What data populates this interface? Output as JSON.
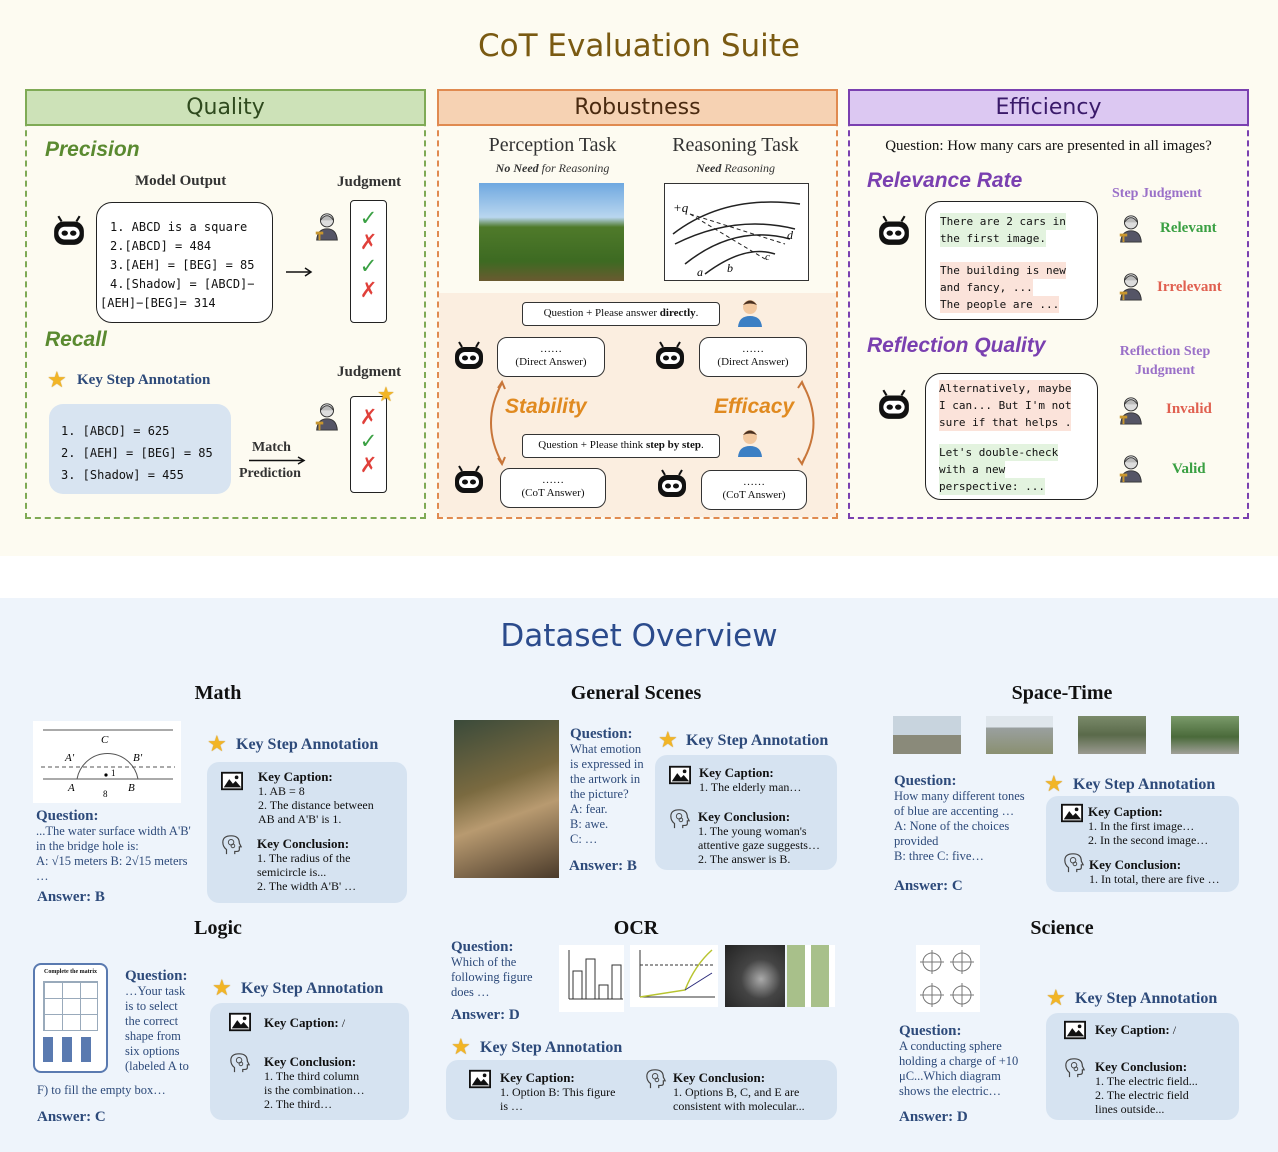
{
  "suite": {
    "title": "CoT Evaluation Suite",
    "quality": {
      "header": "Quality",
      "precision": "Precision",
      "model_output": "Model Output",
      "judgment": "Judgment",
      "output_lines": [
        "1. ABCD is a square",
        "2.[ABCD] = 484",
        "3.[AEH] = [BEG] = 85",
        "4.[Shadow] = [ABCD]−",
        "[AEH]−[BEG]= 314"
      ],
      "marks": [
        "✓",
        "✗",
        "✓",
        "✗"
      ],
      "recall": "Recall",
      "key_step": "Key Step Annotation",
      "judgment2": "Judgment",
      "recall_lines": [
        "1.  [ABCD] = 625",
        "2.  [AEH] = [BEG] = 85",
        "3.  [Shadow] = 455"
      ],
      "match": "Match",
      "prediction": "Prediction",
      "marks2": [
        "✗",
        "✓",
        "✗"
      ]
    },
    "robustness": {
      "header": "Robustness",
      "perception_task": "Perception Task",
      "perception_sub_bold": "No Need",
      "perception_sub_rest": " for Reasoning",
      "reasoning_task": "Reasoning Task",
      "reasoning_sub_bold": "Need",
      "reasoning_sub_rest": " Reasoning",
      "q_direct_pre": "Question + Please answer ",
      "q_direct_bold": "directly",
      "q_cot_pre": "Question + Please think ",
      "q_cot_bold": "step by step",
      "dots": "……",
      "direct_answer": "(Direct Answer)",
      "cot_answer": "(CoT Answer)",
      "stability": "Stability",
      "efficacy": "Efficacy"
    },
    "efficiency": {
      "header": "Efficiency",
      "question": "Question: How many cars are presented in all images?",
      "relevance_rate": "Relevance Rate",
      "step_judgment": "Step Judgment",
      "bubble1_a": [
        "There are 2 cars in",
        "the first image."
      ],
      "bubble1_b": [
        "The building is new",
        "and fancy, ...",
        "The people are ..."
      ],
      "relevant": "Relevant",
      "irrelevant": "Irrelevant",
      "reflection_quality": "Reflection Quality",
      "reflection_step_judgment": [
        "Reflection Step",
        "Judgment"
      ],
      "bubble2_a": [
        "Alternatively, maybe",
        "I can... But I'm not",
        "sure if that helps ."
      ],
      "bubble2_b": [
        "Let's double-check",
        "with a new",
        "perspective: ..."
      ],
      "invalid": "Invalid",
      "valid": "Valid"
    },
    "colors": {
      "quality": "#7faa55",
      "robustness": "#e08a50",
      "efficiency": "#7a40b0",
      "relevant": "#3aa043",
      "irrelevant": "#e06050"
    }
  },
  "dataset": {
    "title": "Dataset Overview",
    "ksa": "Key Step Annotation",
    "key_caption": "Key Caption:",
    "key_conclusion": "Key Conclusion:",
    "question_label": "Question:",
    "math": {
      "title": "Math",
      "question": [
        "...The water surface width A'B'",
        "in the bridge hole is:",
        "A: √15 meters   B: 2√15 meters",
        "…"
      ],
      "answer": "Answer: B",
      "caption": [
        "1. AB = 8",
        "2. The distance between",
        "AB and A'B' is 1."
      ],
      "conclusion": [
        "1. The radius of the",
        "semicircle is...",
        "2. The width A'B' …"
      ],
      "figure_labels": [
        "C",
        "A′",
        "B′",
        "A",
        "B",
        "8",
        "1"
      ]
    },
    "general": {
      "title": "General Scenes",
      "question": [
        "What emotion",
        "is expressed in",
        "the artwork in",
        "the picture?",
        "A: fear.",
        "B: awe.",
        "C: …"
      ],
      "answer": "Answer: B",
      "caption": [
        "1. The elderly man…"
      ],
      "conclusion": [
        "1. The young woman's",
        "attentive gaze suggests…",
        "2. The answer is B."
      ]
    },
    "spacetime": {
      "title": "Space-Time",
      "question": [
        "How many different tones",
        "of blue are accenting …",
        "A: None of the choices",
        "provided",
        "B: three C: five…"
      ],
      "answer": "Answer: C",
      "caption": [
        "1. In the first image…",
        "2. In the second image…"
      ],
      "conclusion": [
        "1. In total, there are five …"
      ]
    },
    "logic": {
      "title": "Logic",
      "question": [
        "…Your task",
        "is to select",
        "the correct",
        "shape from",
        "six options",
        "(labeled A to"
      ],
      "question_tail": "F) to fill the empty box…",
      "answer": "Answer: C",
      "caption": "/",
      "conclusion": [
        "1. The third column",
        "is the combination…",
        "2. The third…"
      ],
      "figure_title": "Complete the matrix"
    },
    "ocr": {
      "title": "OCR",
      "question": [
        "Which of the",
        "following figure",
        "does …"
      ],
      "answer": "Answer: D",
      "caption": [
        "1. Option B: This figure",
        "is …"
      ],
      "conclusion": [
        "1. Options B, C, and E are",
        "consistent with molecular..."
      ]
    },
    "science": {
      "title": "Science",
      "question": [
        "A conducting sphere",
        "holding a charge of +10",
        "μC...Which diagram",
        "shows the electric…"
      ],
      "answer": "Answer: D",
      "caption": "/",
      "conclusion": [
        "1. The electric field...",
        "2. The electric field",
        "lines outside..."
      ]
    }
  }
}
